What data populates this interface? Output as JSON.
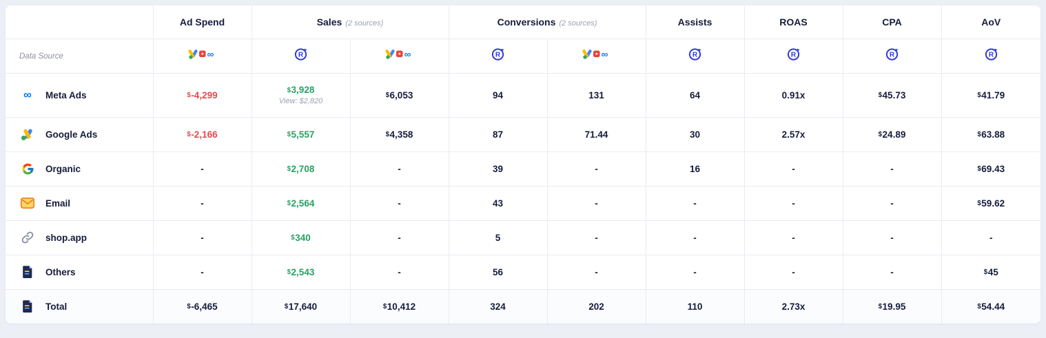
{
  "header": {
    "data_source_label": "Data Source",
    "columns": {
      "ad_spend": "Ad Spend",
      "sales": "Sales",
      "sales_sub": "(2 sources)",
      "conversions": "Conversions",
      "conversions_sub": "(2 sources)",
      "assists": "Assists",
      "roas": "ROAS",
      "cpa": "CPA",
      "aov": "AoV"
    },
    "source_icons": [
      "ad-platforms-icon",
      "r-attribution-icon",
      "ad-platforms-icon",
      "r-attribution-icon",
      "ad-platforms-icon",
      "r-attribution-icon",
      "r-attribution-icon",
      "r-attribution-icon",
      "r-attribution-icon"
    ]
  },
  "colors": {
    "accent_blue": "#2f3ad8",
    "positive_green": "#27a163",
    "negative_red": "#e5484d"
  },
  "rows": [
    {
      "id": "meta-ads",
      "label": "Meta Ads",
      "icon": "meta-icon",
      "tall": true,
      "cells": [
        {
          "text": "$-4,299",
          "style": "negative"
        },
        {
          "text": "$3,928",
          "style": "positive",
          "sub": "View: $2,820"
        },
        {
          "text": "$6,053"
        },
        {
          "text": "94"
        },
        {
          "text": "131"
        },
        {
          "text": "64"
        },
        {
          "text": "0.91x"
        },
        {
          "text": "$45.73"
        },
        {
          "text": "$41.79"
        }
      ]
    },
    {
      "id": "google-ads",
      "label": "Google Ads",
      "icon": "google-ads-icon",
      "cells": [
        {
          "text": "$-2,166",
          "style": "negative"
        },
        {
          "text": "$5,557",
          "style": "positive"
        },
        {
          "text": "$4,358"
        },
        {
          "text": "87"
        },
        {
          "text": "71.44"
        },
        {
          "text": "30"
        },
        {
          "text": "2.57x"
        },
        {
          "text": "$24.89"
        },
        {
          "text": "$63.88"
        }
      ]
    },
    {
      "id": "organic",
      "label": "Organic",
      "icon": "google-g-icon",
      "cells": [
        {
          "text": "-"
        },
        {
          "text": "$2,708",
          "style": "positive"
        },
        {
          "text": "-"
        },
        {
          "text": "39"
        },
        {
          "text": "-"
        },
        {
          "text": "16"
        },
        {
          "text": "-"
        },
        {
          "text": "-"
        },
        {
          "text": "$69.43"
        }
      ]
    },
    {
      "id": "email",
      "label": "Email",
      "icon": "email-icon",
      "cells": [
        {
          "text": "-"
        },
        {
          "text": "$2,564",
          "style": "positive"
        },
        {
          "text": "-"
        },
        {
          "text": "43"
        },
        {
          "text": "-"
        },
        {
          "text": "-"
        },
        {
          "text": "-"
        },
        {
          "text": "-"
        },
        {
          "text": "$59.62"
        }
      ]
    },
    {
      "id": "shop-app",
      "label": "shop.app",
      "icon": "link-icon",
      "cells": [
        {
          "text": "-"
        },
        {
          "text": "$340",
          "style": "positive"
        },
        {
          "text": "-"
        },
        {
          "text": "5"
        },
        {
          "text": "-"
        },
        {
          "text": "-"
        },
        {
          "text": "-"
        },
        {
          "text": "-"
        },
        {
          "text": "-"
        }
      ]
    },
    {
      "id": "others",
      "label": "Others",
      "icon": "document-icon",
      "cells": [
        {
          "text": "-"
        },
        {
          "text": "$2,543",
          "style": "positive"
        },
        {
          "text": "-"
        },
        {
          "text": "56"
        },
        {
          "text": "-"
        },
        {
          "text": "-"
        },
        {
          "text": "-"
        },
        {
          "text": "-"
        },
        {
          "text": "$45"
        }
      ]
    },
    {
      "id": "total",
      "label": "Total",
      "icon": "document-icon",
      "total": true,
      "cells": [
        {
          "text": "$-6,465"
        },
        {
          "text": "$17,640"
        },
        {
          "text": "$10,412"
        },
        {
          "text": "324"
        },
        {
          "text": "202"
        },
        {
          "text": "110"
        },
        {
          "text": "2.73x"
        },
        {
          "text": "$19.95"
        },
        {
          "text": "$54.44"
        }
      ]
    }
  ]
}
